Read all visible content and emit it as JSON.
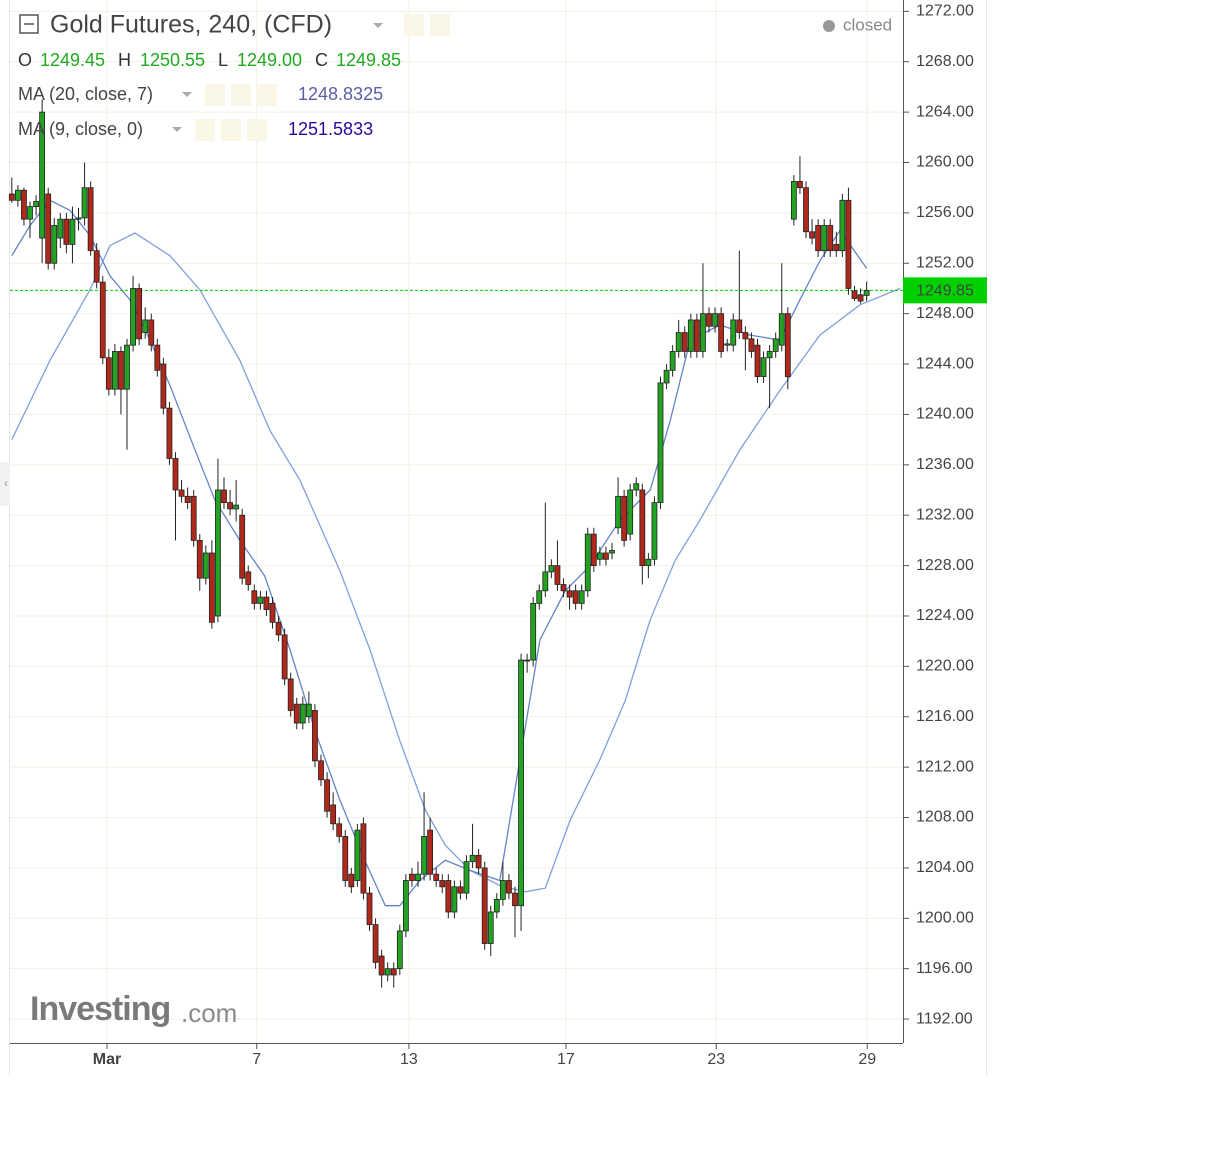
{
  "chart_data": {
    "type": "candlestick",
    "title": "Gold Futures, 240, (CFD)",
    "status": "closed",
    "ohlc": [
      {
        "label": "O",
        "value": "1249.45"
      },
      {
        "label": "H",
        "value": "1250.55"
      },
      {
        "label": "L",
        "value": "1249.00"
      },
      {
        "label": "C",
        "value": "1249.85"
      }
    ],
    "up_color": "#22a322",
    "down_color": "#b0281a",
    "candles": [
      [
        1257.5,
        1258.8,
        1256.8,
        1257.0
      ],
      [
        1257.0,
        1258.2,
        1256.5,
        1257.8
      ],
      [
        1257.8,
        1258.0,
        1255.0,
        1255.5
      ],
      [
        1255.5,
        1256.9,
        1254.0,
        1256.5
      ],
      [
        1256.5,
        1257.4,
        1255.8,
        1256.9
      ],
      [
        1254.0,
        1265.0,
        1252.0,
        1264.0
      ],
      [
        1257.5,
        1258.0,
        1251.5,
        1252.0
      ],
      [
        1252.0,
        1255.6,
        1251.5,
        1255.0
      ],
      [
        1254.0,
        1256.0,
        1253.2,
        1255.5
      ],
      [
        1255.5,
        1256.0,
        1252.8,
        1253.5
      ],
      [
        1253.5,
        1256.5,
        1252.0,
        1255.5
      ],
      [
        1255.5,
        1256.4,
        1254.6,
        1255.6
      ],
      [
        1255.6,
        1260.0,
        1255.0,
        1258.0
      ],
      [
        1258.0,
        1258.5,
        1252.6,
        1253.0
      ],
      [
        1253.0,
        1253.6,
        1250.0,
        1250.5
      ],
      [
        1250.5,
        1251.0,
        1244.0,
        1244.5
      ],
      [
        1244.5,
        1245.2,
        1241.5,
        1242.0
      ],
      [
        1242.0,
        1245.6,
        1241.5,
        1245.0
      ],
      [
        1245.0,
        1245.4,
        1240.0,
        1242.0
      ],
      [
        1242.0,
        1246.0,
        1237.2,
        1245.5
      ],
      [
        1245.5,
        1251.0,
        1245.0,
        1250.0
      ],
      [
        1250.0,
        1250.4,
        1245.5,
        1246.0
      ],
      [
        1246.5,
        1248.5,
        1246.0,
        1247.5
      ],
      [
        1247.5,
        1248.0,
        1245.0,
        1245.5
      ],
      [
        1245.5,
        1246.0,
        1243.0,
        1243.5
      ],
      [
        1244.0,
        1244.5,
        1240.0,
        1240.5
      ],
      [
        1240.5,
        1241.0,
        1236.0,
        1236.5
      ],
      [
        1236.5,
        1237.0,
        1230.0,
        1234.0
      ],
      [
        1234.0,
        1234.8,
        1233.0,
        1233.5
      ],
      [
        1233.5,
        1234.2,
        1232.5,
        1233.0
      ],
      [
        1233.5,
        1234.0,
        1229.5,
        1230.0
      ],
      [
        1230.0,
        1230.5,
        1226.0,
        1227.0
      ],
      [
        1227.0,
        1229.6,
        1226.5,
        1229.0
      ],
      [
        1229.0,
        1230.0,
        1223.0,
        1223.5
      ],
      [
        1224.0,
        1236.5,
        1223.5,
        1234.0
      ],
      [
        1234.0,
        1235.0,
        1232.5,
        1233.0
      ],
      [
        1233.0,
        1234.0,
        1232.0,
        1232.5
      ],
      [
        1232.5,
        1234.8,
        1231.5,
        1232.8
      ],
      [
        1232.0,
        1232.5,
        1226.5,
        1227.0
      ],
      [
        1227.5,
        1228.0,
        1226.0,
        1226.5
      ],
      [
        1226.0,
        1226.5,
        1224.5,
        1225.0
      ],
      [
        1225.0,
        1226.0,
        1224.5,
        1225.5
      ],
      [
        1225.5,
        1226.0,
        1224.0,
        1224.5
      ],
      [
        1225.0,
        1225.5,
        1223.0,
        1223.5
      ],
      [
        1223.5,
        1224.0,
        1222.0,
        1222.5
      ],
      [
        1222.5,
        1223.0,
        1218.5,
        1219.0
      ],
      [
        1219.0,
        1219.5,
        1216.0,
        1216.5
      ],
      [
        1217.0,
        1217.5,
        1215.0,
        1215.5
      ],
      [
        1215.5,
        1217.6,
        1215.0,
        1217.0
      ],
      [
        1216.0,
        1218.0,
        1215.5,
        1217.0
      ],
      [
        1216.5,
        1217.0,
        1212.0,
        1212.5
      ],
      [
        1212.5,
        1213.0,
        1210.5,
        1211.0
      ],
      [
        1211.0,
        1211.6,
        1208.0,
        1208.5
      ],
      [
        1209.0,
        1210.0,
        1207.0,
        1207.5
      ],
      [
        1207.5,
        1208.0,
        1206.0,
        1206.5
      ],
      [
        1206.5,
        1207.0,
        1202.5,
        1203.0
      ],
      [
        1203.5,
        1204.0,
        1202.0,
        1202.5
      ],
      [
        1203.0,
        1207.5,
        1202.5,
        1207.0
      ],
      [
        1207.5,
        1208.0,
        1201.5,
        1202.0
      ],
      [
        1202.0,
        1202.5,
        1199.0,
        1199.5
      ],
      [
        1199.5,
        1200.0,
        1196.0,
        1196.5
      ],
      [
        1197.0,
        1197.5,
        1194.5,
        1195.5
      ],
      [
        1195.5,
        1196.5,
        1195.0,
        1196.0
      ],
      [
        1196.0,
        1196.5,
        1194.5,
        1195.5
      ],
      [
        1196.0,
        1199.5,
        1195.5,
        1199.0
      ],
      [
        1199.0,
        1203.5,
        1198.5,
        1203.0
      ],
      [
        1203.5,
        1204.0,
        1202.5,
        1203.0
      ],
      [
        1203.0,
        1204.5,
        1202.5,
        1203.5
      ],
      [
        1203.5,
        1210.0,
        1203.0,
        1206.5
      ],
      [
        1207.0,
        1208.0,
        1203.0,
        1203.5
      ],
      [
        1203.5,
        1204.0,
        1202.5,
        1203.0
      ],
      [
        1203.0,
        1203.5,
        1202.0,
        1202.5
      ],
      [
        1203.0,
        1203.5,
        1200.0,
        1200.5
      ],
      [
        1200.5,
        1203.0,
        1200.0,
        1202.5
      ],
      [
        1202.5,
        1203.0,
        1201.5,
        1202.0
      ],
      [
        1202.0,
        1205.0,
        1201.5,
        1204.5
      ],
      [
        1204.5,
        1207.5,
        1204.0,
        1205.0
      ],
      [
        1205.0,
        1205.5,
        1203.5,
        1204.0
      ],
      [
        1204.0,
        1204.5,
        1197.5,
        1198.0
      ],
      [
        1198.0,
        1201.0,
        1197.0,
        1200.5
      ],
      [
        1200.5,
        1202.0,
        1200.0,
        1201.5
      ],
      [
        1201.5,
        1204.5,
        1201.0,
        1203.0
      ],
      [
        1203.0,
        1203.5,
        1201.5,
        1202.0
      ],
      [
        1202.0,
        1202.5,
        1198.5,
        1201.0
      ],
      [
        1201.0,
        1221.0,
        1199.0,
        1220.5
      ],
      [
        1220.5,
        1221.0,
        1219.5,
        1220.5
      ],
      [
        1220.5,
        1225.5,
        1220.0,
        1225.0
      ],
      [
        1225.0,
        1226.5,
        1224.5,
        1226.0
      ],
      [
        1226.0,
        1233.0,
        1225.5,
        1227.5
      ],
      [
        1227.5,
        1228.5,
        1227.0,
        1228.0
      ],
      [
        1228.0,
        1230.0,
        1226.0,
        1226.5
      ],
      [
        1226.5,
        1227.0,
        1225.5,
        1226.0
      ],
      [
        1226.0,
        1226.5,
        1224.5,
        1225.5
      ],
      [
        1226.0,
        1226.5,
        1224.5,
        1225.0
      ],
      [
        1225.0,
        1226.5,
        1224.5,
        1226.0
      ],
      [
        1226.0,
        1231.0,
        1225.5,
        1230.5
      ],
      [
        1230.5,
        1231.0,
        1227.5,
        1228.0
      ],
      [
        1228.5,
        1229.5,
        1228.0,
        1229.0
      ],
      [
        1229.0,
        1229.5,
        1228.0,
        1228.5
      ],
      [
        1229.0,
        1229.8,
        1228.5,
        1229.2
      ],
      [
        1231.0,
        1235.0,
        1230.5,
        1233.5
      ],
      [
        1233.5,
        1234.0,
        1229.5,
        1230.0
      ],
      [
        1230.5,
        1234.5,
        1230.0,
        1234.0
      ],
      [
        1234.0,
        1235.0,
        1233.5,
        1234.5
      ],
      [
        1234.0,
        1234.5,
        1226.5,
        1228.0
      ],
      [
        1228.0,
        1229.0,
        1227.0,
        1228.5
      ],
      [
        1228.5,
        1233.5,
        1228.0,
        1233.0
      ],
      [
        1233.0,
        1243.0,
        1232.5,
        1242.5
      ],
      [
        1242.5,
        1244.0,
        1242.0,
        1243.5
      ],
      [
        1243.5,
        1245.5,
        1243.0,
        1245.0
      ],
      [
        1245.0,
        1247.5,
        1244.5,
        1246.5
      ],
      [
        1246.5,
        1247.0,
        1244.5,
        1245.0
      ],
      [
        1245.0,
        1248.0,
        1244.5,
        1247.5
      ],
      [
        1247.5,
        1248.0,
        1244.5,
        1245.0
      ],
      [
        1245.0,
        1252.0,
        1244.5,
        1248.0
      ],
      [
        1248.0,
        1248.5,
        1246.5,
        1247.0
      ],
      [
        1247.0,
        1248.5,
        1246.5,
        1248.0
      ],
      [
        1248.0,
        1248.5,
        1244.5,
        1245.0
      ],
      [
        1245.5,
        1246.0,
        1245.0,
        1245.6
      ],
      [
        1245.5,
        1248.0,
        1245.0,
        1247.5
      ],
      [
        1247.5,
        1253.0,
        1246.0,
        1246.5
      ],
      [
        1246.5,
        1247.0,
        1243.5,
        1246.0
      ],
      [
        1246.0,
        1246.5,
        1244.5,
        1245.0
      ],
      [
        1245.5,
        1246.0,
        1242.5,
        1243.0
      ],
      [
        1243.0,
        1245.0,
        1242.5,
        1244.5
      ],
      [
        1244.5,
        1245.5,
        1240.5,
        1245.0
      ],
      [
        1245.0,
        1246.5,
        1244.5,
        1246.0
      ],
      [
        1245.5,
        1252.0,
        1245.0,
        1248.0
      ],
      [
        1248.0,
        1248.5,
        1242.0,
        1243.0
      ],
      [
        1255.5,
        1259.0,
        1255.0,
        1258.5
      ],
      [
        1258.5,
        1260.5,
        1257.5,
        1258.0
      ],
      [
        1258.0,
        1258.5,
        1254.0,
        1254.5
      ],
      [
        1254.5,
        1255.5,
        1253.5,
        1254.0
      ],
      [
        1255.0,
        1255.5,
        1252.5,
        1253.0
      ],
      [
        1253.0,
        1255.5,
        1252.5,
        1255.0
      ],
      [
        1255.0,
        1255.5,
        1252.5,
        1253.0
      ],
      [
        1253.5,
        1254.5,
        1252.5,
        1253.0
      ],
      [
        1253.0,
        1257.5,
        1252.5,
        1257.0
      ],
      [
        1257.0,
        1258.0,
        1249.5,
        1250.0
      ],
      [
        1249.8,
        1250.2,
        1249.0,
        1249.2
      ],
      [
        1249.5,
        1250.0,
        1248.8,
        1249.0
      ],
      [
        1249.45,
        1250.55,
        1249.0,
        1249.85
      ]
    ],
    "indicators": [
      {
        "name": "MA (20, close, 7)",
        "value_label": "1248.8325",
        "color": "#7f9fdc",
        "label_color": "#5b5ea6",
        "x": [
          0,
          6.3,
          12.9,
          16.2,
          20.3,
          26.1,
          31,
          37.6,
          42.6,
          47.5,
          54.1,
          59.1,
          64,
          68.2,
          71.5,
          75.6,
          80.5,
          84.7,
          88,
          92.1,
          97,
          101.2,
          105.3,
          109.4,
          113.5,
          120.1,
          126.7,
          133.3,
          139.9,
          146.5
        ],
        "values": [
          1238,
          1244.3,
          1249.9,
          1253.4,
          1254.4,
          1252.6,
          1249.9,
          1244.3,
          1238.7,
          1234.8,
          1227.6,
          1221.3,
          1214.1,
          1208.6,
          1205.8,
          1203.8,
          1202.6,
          1202.1,
          1202.4,
          1207.8,
          1212.6,
          1217.3,
          1223.7,
          1228.4,
          1231.6,
          1237.2,
          1241.9,
          1246.3,
          1248.7,
          1250
        ]
      },
      {
        "name": "MA (9, close, 0)",
        "value_label": "1251.5833",
        "color": "#6484cc",
        "label_color": "#2c0a9c",
        "x": [
          0,
          3,
          6.3,
          9.6,
          12.9,
          16.2,
          19.5,
          22.8,
          26.1,
          30.2,
          33.5,
          37.6,
          41.7,
          45.9,
          50,
          54.1,
          58.2,
          61.6,
          64,
          67.3,
          71.5,
          75.6,
          80.5,
          83.8,
          87.1,
          91.3,
          95.4,
          100.3,
          105.3,
          108.6,
          111.9,
          116.8,
          121.8,
          126.7,
          130,
          133.3,
          136.6,
          141
        ],
        "values": [
          1252.6,
          1255,
          1257,
          1256.2,
          1254.2,
          1251,
          1249.1,
          1245.9,
          1242.3,
          1237.2,
          1233.2,
          1230,
          1227.2,
          1221.3,
          1214.9,
          1209.4,
          1204.6,
          1201,
          1201,
          1203,
          1204.6,
          1203.8,
          1203,
          1212.6,
          1222.1,
          1226,
          1228,
          1231.6,
          1234,
          1239.5,
          1245.9,
          1247.1,
          1246.3,
          1245.9,
          1249.1,
          1252.2,
          1254.6,
          1251.6
        ]
      }
    ],
    "last_price": {
      "value": 1249.85,
      "label": "1249.85",
      "color": "#00d000"
    },
    "xlim": [
      -0.3,
      147
    ],
    "ylim": [
      1190.1,
      1272.9
    ],
    "xticks": [
      {
        "value": 15.7,
        "label": "Mar"
      },
      {
        "value": 40.4,
        "label": "7"
      },
      {
        "value": 65.5,
        "label": "13"
      },
      {
        "value": 91.4,
        "label": "17"
      },
      {
        "value": 116.2,
        "label": "23"
      },
      {
        "value": 141.1,
        "label": "29"
      }
    ],
    "yticks": [
      {
        "value": 1192,
        "label": "1192.00"
      },
      {
        "value": 1196,
        "label": "1196.00"
      },
      {
        "value": 1200,
        "label": "1200.00"
      },
      {
        "value": 1204,
        "label": "1204.00"
      },
      {
        "value": 1208,
        "label": "1208.00"
      },
      {
        "value": 1212,
        "label": "1212.00"
      },
      {
        "value": 1216,
        "label": "1216.00"
      },
      {
        "value": 1220,
        "label": "1220.00"
      },
      {
        "value": 1224,
        "label": "1224.00"
      },
      {
        "value": 1228,
        "label": "1228.00"
      },
      {
        "value": 1232,
        "label": "1232.00"
      },
      {
        "value": 1236,
        "label": "1236.00"
      },
      {
        "value": 1240,
        "label": "1240.00"
      },
      {
        "value": 1244,
        "label": "1244.00"
      },
      {
        "value": 1248,
        "label": "1248.00"
      },
      {
        "value": 1252,
        "label": "1252.00"
      },
      {
        "value": 1256,
        "label": "1256.00"
      },
      {
        "value": 1260,
        "label": "1260.00"
      },
      {
        "value": 1264,
        "label": "1264.00"
      },
      {
        "value": 1268,
        "label": "1268.00"
      },
      {
        "value": 1272,
        "label": "1272.00"
      }
    ],
    "grid": true,
    "watermark": [
      "Investing",
      ".com"
    ]
  }
}
